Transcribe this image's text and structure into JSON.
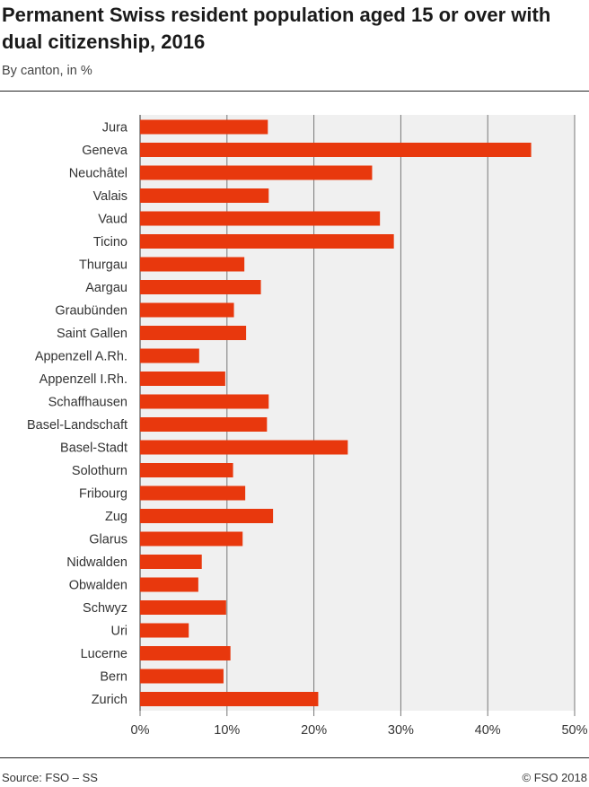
{
  "header": {
    "title": "Permanent Swiss resident population aged 15 or over with dual citizenship, 2016",
    "subtitle": "By canton, in %"
  },
  "footer": {
    "source": "Source: FSO – SS",
    "copyright": "© FSO 2018"
  },
  "colors": {
    "bar": "#e8380d",
    "plot_bg": "#f0f0f0",
    "grid": "#777777"
  },
  "chart_data": {
    "type": "bar",
    "orientation": "horizontal",
    "categories": [
      "Jura",
      "Geneva",
      "Neuchâtel",
      "Valais",
      "Vaud",
      "Ticino",
      "Thurgau",
      "Aargau",
      "Graubünden",
      "Saint Gallen",
      "Appenzell A.Rh.",
      "Appenzell I.Rh.",
      "Schaffhausen",
      "Basel-Landschaft",
      "Basel-Stadt",
      "Solothurn",
      "Fribourg",
      "Zug",
      "Glarus",
      "Nidwalden",
      "Obwalden",
      "Schwyz",
      "Uri",
      "Lucerne",
      "Bern",
      "Zurich"
    ],
    "values": [
      14.7,
      45.0,
      26.7,
      14.8,
      27.6,
      29.2,
      12.0,
      13.9,
      10.8,
      12.2,
      6.8,
      9.8,
      14.8,
      14.6,
      23.9,
      10.7,
      12.1,
      15.3,
      11.8,
      7.1,
      6.7,
      9.9,
      5.6,
      10.4,
      9.6,
      20.5
    ],
    "xlim": [
      0,
      50
    ],
    "xticks": [
      0,
      10,
      20,
      30,
      40,
      50
    ],
    "xtick_labels": [
      "0%",
      "10%",
      "20%",
      "30%",
      "40%",
      "50%"
    ],
    "grid": true
  }
}
